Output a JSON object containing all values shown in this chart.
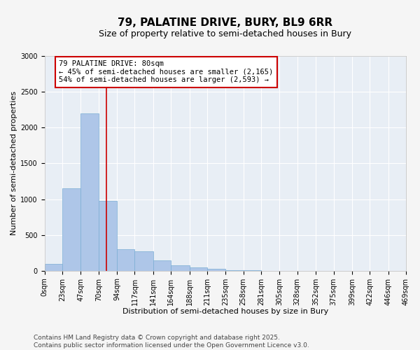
{
  "title": "79, PALATINE DRIVE, BURY, BL9 6RR",
  "subtitle": "Size of property relative to semi-detached houses in Bury",
  "xlabel": "Distribution of semi-detached houses by size in Bury",
  "ylabel": "Number of semi-detached properties",
  "bar_color": "#aec6e8",
  "bar_edge_color": "#7aadd4",
  "background_color": "#e8eef5",
  "fig_background_color": "#f5f5f5",
  "grid_color": "#ffffff",
  "bin_labels": [
    "0sqm",
    "23sqm",
    "47sqm",
    "70sqm",
    "94sqm",
    "117sqm",
    "141sqm",
    "164sqm",
    "188sqm",
    "211sqm",
    "235sqm",
    "258sqm",
    "281sqm",
    "305sqm",
    "328sqm",
    "352sqm",
    "375sqm",
    "399sqm",
    "422sqm",
    "446sqm",
    "469sqm"
  ],
  "bar_values": [
    100,
    1150,
    2200,
    980,
    300,
    270,
    140,
    80,
    50,
    25,
    10,
    5,
    0,
    0,
    0,
    0,
    0,
    0,
    0,
    0
  ],
  "bin_edges": [
    0,
    23,
    47,
    70,
    94,
    117,
    141,
    164,
    188,
    211,
    235,
    258,
    281,
    305,
    328,
    352,
    375,
    399,
    422,
    446,
    469
  ],
  "property_size": 80,
  "red_line_color": "#cc0000",
  "annotation_text_line1": "79 PALATINE DRIVE: 80sqm",
  "annotation_text_line2": "← 45% of semi-detached houses are smaller (2,165)",
  "annotation_text_line3": "54% of semi-detached houses are larger (2,593) →",
  "annotation_box_color": "#cc0000",
  "ylim": [
    0,
    3000
  ],
  "yticks": [
    0,
    500,
    1000,
    1500,
    2000,
    2500,
    3000
  ],
  "footer_line1": "Contains HM Land Registry data © Crown copyright and database right 2025.",
  "footer_line2": "Contains public sector information licensed under the Open Government Licence v3.0.",
  "title_fontsize": 11,
  "subtitle_fontsize": 9,
  "axis_label_fontsize": 8,
  "tick_fontsize": 7,
  "footer_fontsize": 6.5,
  "annotation_fontsize": 7.5
}
